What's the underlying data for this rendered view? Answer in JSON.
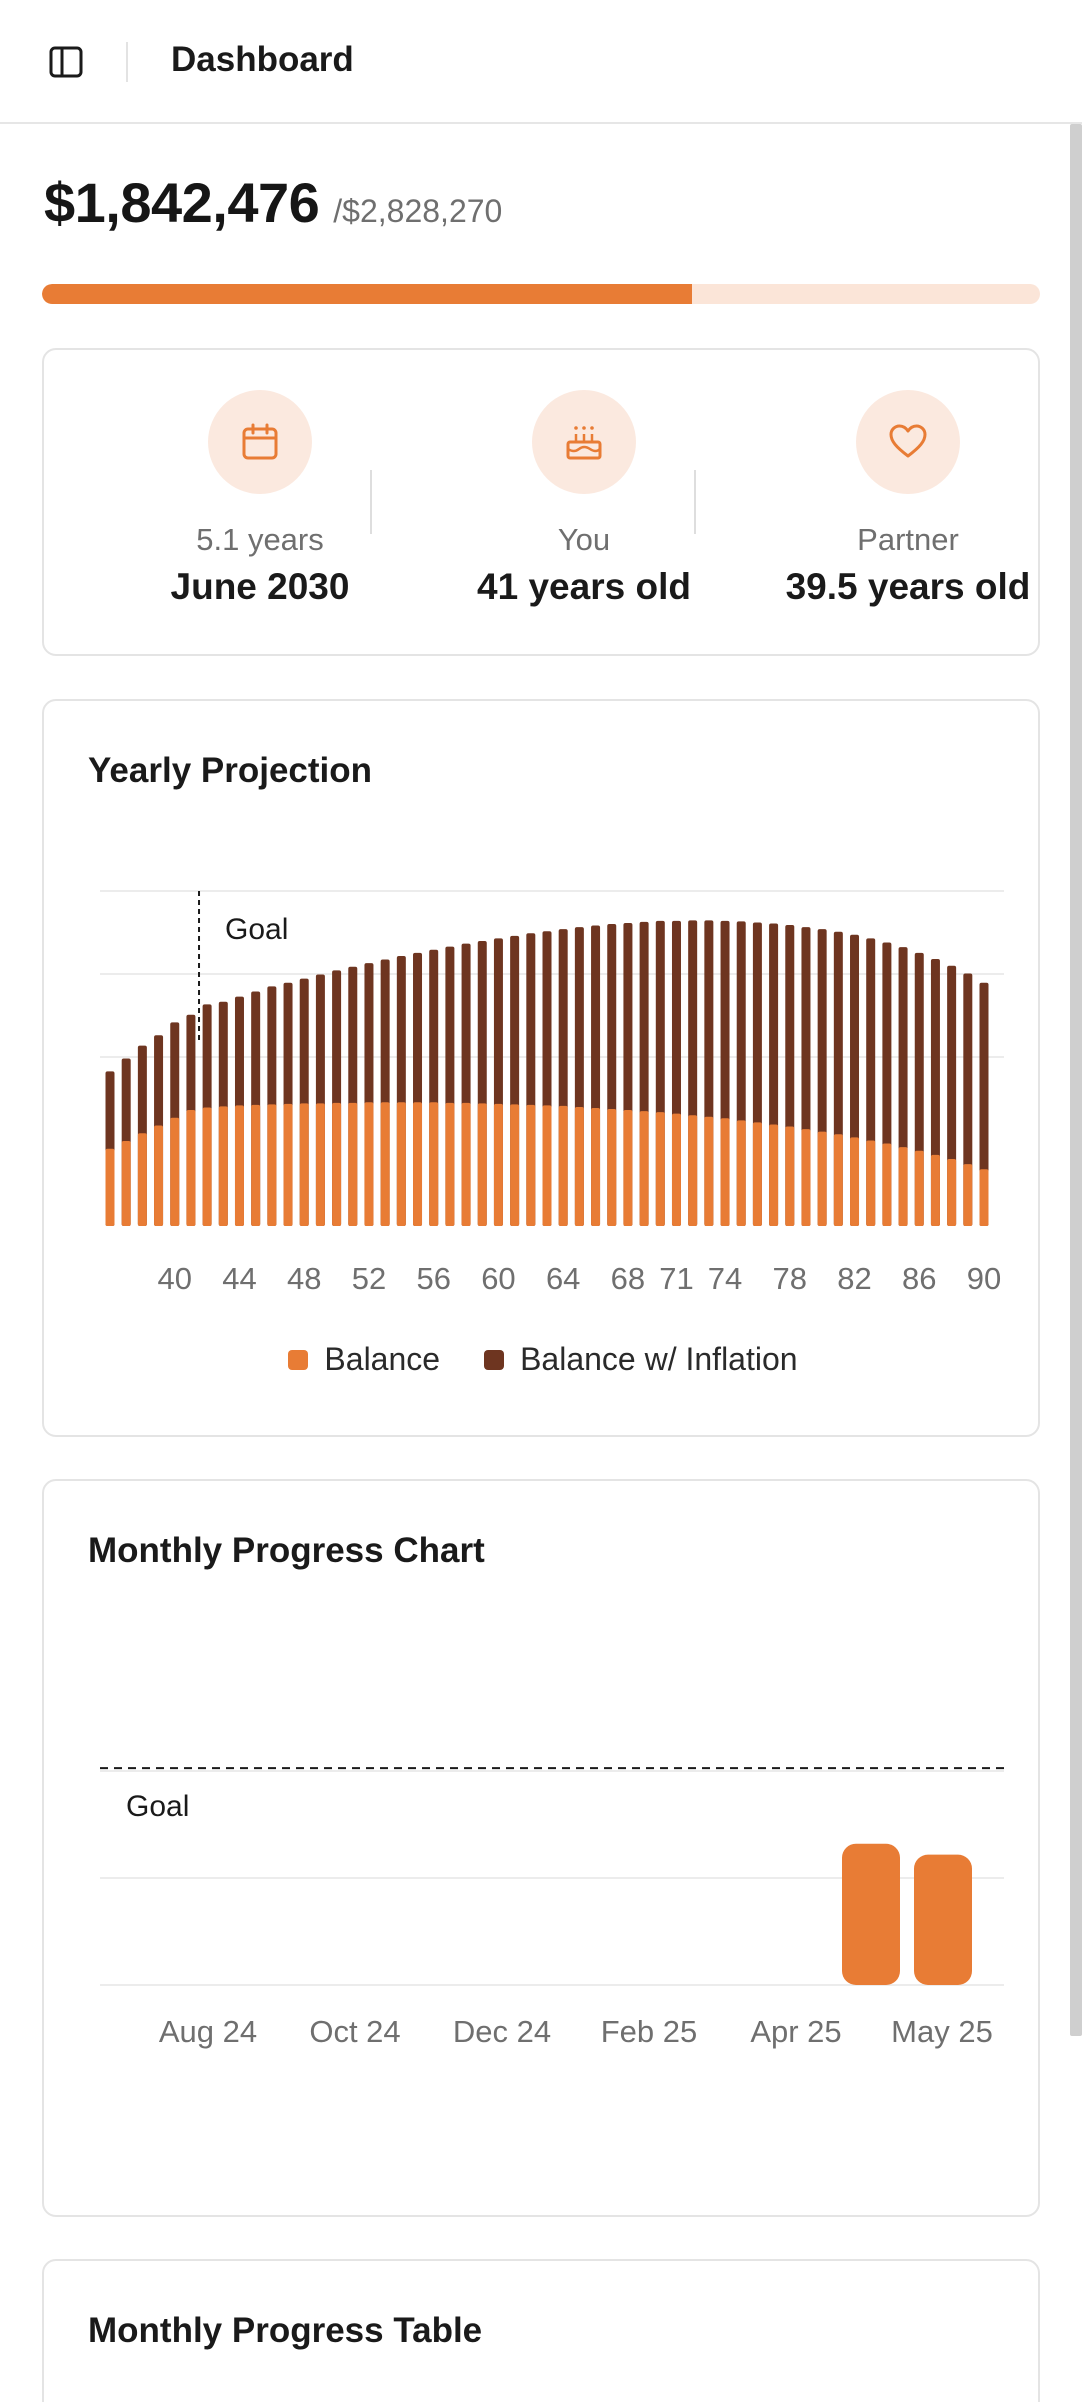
{
  "header": {
    "title": "Dashboard",
    "sidebar_toggle_icon": "sidebar-panel-icon"
  },
  "summary": {
    "balance": "$1,842,476",
    "goal": "/$2,828,270",
    "progress_fraction": 0.651
  },
  "stats": [
    {
      "icon": "calendar-icon",
      "sublabel": "5.1 years",
      "value": "June 2030"
    },
    {
      "icon": "birthday-cake-icon",
      "sublabel": "You",
      "value": "41 years old"
    },
    {
      "icon": "heart-icon",
      "sublabel": "Partner",
      "value": "39.5 years old"
    }
  ],
  "colors": {
    "accent": "#e87c35",
    "accent_light": "#fbe9df",
    "inflation": "#6e3520"
  },
  "yearly_projection": {
    "title": "Yearly Projection",
    "goal_label": "Goal",
    "legend": [
      "Balance",
      "Balance w/ Inflation"
    ]
  },
  "monthly_chart": {
    "title": "Monthly Progress Chart",
    "goal_label": "Goal"
  },
  "monthly_table": {
    "title": "Monthly Progress Table"
  },
  "chart_data": [
    {
      "type": "bar",
      "x": [
        36,
        37,
        38,
        39,
        40,
        41,
        42,
        43,
        44,
        45,
        46,
        47,
        48,
        49,
        50,
        51,
        52,
        53,
        54,
        55,
        56,
        57,
        58,
        59,
        60,
        61,
        62,
        63,
        64,
        65,
        66,
        67,
        68,
        69,
        70,
        71,
        72,
        73,
        74,
        75,
        76,
        77,
        78,
        79,
        80,
        81,
        82,
        83,
        84,
        85,
        86,
        87,
        88,
        89,
        90
      ],
      "x_tick_labels": [
        "40",
        "44",
        "48",
        "52",
        "56",
        "60",
        "64",
        "68",
        "71",
        "74",
        "78",
        "82",
        "86",
        "90"
      ],
      "goal_x": 41,
      "series": [
        {
          "name": "Balance",
          "values": [
            1.5,
            1.65,
            1.8,
            1.95,
            2.1,
            2.25,
            2.3,
            2.32,
            2.34,
            2.35,
            2.36,
            2.37,
            2.38,
            2.38,
            2.39,
            2.39,
            2.4,
            2.4,
            2.4,
            2.4,
            2.4,
            2.39,
            2.39,
            2.38,
            2.37,
            2.36,
            2.35,
            2.34,
            2.33,
            2.31,
            2.29,
            2.27,
            2.25,
            2.23,
            2.21,
            2.18,
            2.15,
            2.12,
            2.09,
            2.05,
            2.01,
            1.97,
            1.93,
            1.88,
            1.83,
            1.78,
            1.72,
            1.66,
            1.6,
            1.53,
            1.46,
            1.38,
            1.3,
            1.2,
            1.1
          ]
        },
        {
          "name": "Balance w/ Inflation",
          "values": [
            3.0,
            3.25,
            3.5,
            3.7,
            3.95,
            4.1,
            4.3,
            4.35,
            4.45,
            4.55,
            4.65,
            4.72,
            4.8,
            4.88,
            4.96,
            5.03,
            5.1,
            5.17,
            5.24,
            5.3,
            5.36,
            5.42,
            5.48,
            5.53,
            5.58,
            5.63,
            5.68,
            5.72,
            5.76,
            5.8,
            5.83,
            5.86,
            5.88,
            5.9,
            5.92,
            5.92,
            5.93,
            5.93,
            5.92,
            5.91,
            5.89,
            5.87,
            5.84,
            5.8,
            5.76,
            5.71,
            5.65,
            5.58,
            5.5,
            5.41,
            5.3,
            5.18,
            5.05,
            4.9,
            4.72
          ]
        }
      ],
      "ylim": [
        0,
        6.5
      ]
    },
    {
      "type": "bar",
      "x_tick_labels": [
        "Aug 24",
        "Oct 24",
        "Dec 24",
        "Feb 25",
        "Apr 25",
        "May 25"
      ],
      "categories": [
        "Apr 25",
        "May 25"
      ],
      "series": [
        {
          "name": "Balance",
          "values": [
            1842476,
            1700000
          ]
        }
      ],
      "goal": 2828270,
      "ylim": [
        0,
        3000000
      ]
    }
  ]
}
